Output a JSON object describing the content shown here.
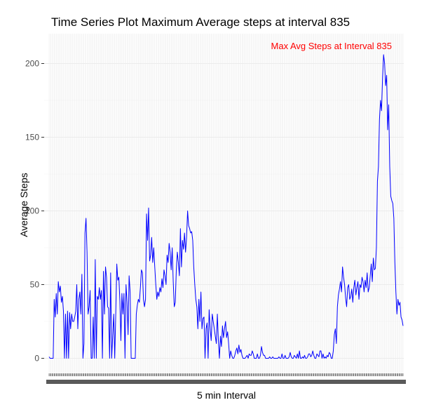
{
  "chart_data": {
    "type": "line",
    "title": "Time Series Plot Maximum Average steps at interval 835",
    "xlabel": "5 min Interval",
    "ylabel": "Average Steps",
    "ylim": [
      -12,
      220
    ],
    "yticks": [
      0,
      50,
      100,
      150,
      200
    ],
    "x_axis_kind": "categorical",
    "x_tick_labels_legible": false,
    "grid": true,
    "series": [
      {
        "color": "#0000ff",
        "values": [
          1,
          0,
          0,
          0,
          0,
          40,
          28,
          44,
          30,
          52,
          45,
          49,
          38,
          42,
          32,
          0,
          30,
          0,
          32,
          0,
          31,
          20,
          30,
          25,
          25,
          28,
          32,
          50,
          20,
          40,
          45,
          30,
          57,
          0,
          10,
          85,
          95,
          72,
          30,
          35,
          46,
          0,
          0,
          28,
          0,
          67,
          0,
          42,
          40,
          48,
          40,
          46,
          0,
          59,
          30,
          62,
          55,
          35,
          34,
          0,
          58,
          0,
          15,
          30,
          0,
          31,
          64,
          53,
          55,
          39,
          12,
          44,
          30,
          44,
          0,
          50,
          38,
          16,
          56,
          45,
          0,
          0,
          0,
          0,
          0,
          30,
          36,
          40,
          38,
          48,
          60,
          58,
          40,
          35,
          40,
          98,
          80,
          102,
          66,
          70,
          82,
          65,
          75,
          62,
          50,
          40,
          45,
          42,
          48,
          45,
          54,
          48,
          60,
          56,
          50,
          70,
          65,
          78,
          72,
          60,
          75,
          52,
          35,
          38,
          60,
          72,
          65,
          56,
          88,
          62,
          80,
          74,
          85,
          72,
          82,
          100,
          90,
          88,
          85,
          86,
          80,
          62,
          50,
          40,
          35,
          20,
          40,
          25,
          45,
          20,
          27,
          28,
          0,
          20,
          24,
          0,
          33,
          20,
          12,
          30,
          25,
          20,
          15,
          10,
          30,
          12,
          0,
          15,
          8,
          22,
          14,
          20,
          25,
          14,
          18,
          10,
          0,
          5,
          2,
          0,
          0,
          2,
          5,
          7,
          3,
          9,
          4,
          6,
          2,
          0,
          0,
          0,
          1,
          2,
          0,
          3,
          2,
          2,
          5,
          3,
          0,
          0,
          0,
          3,
          0,
          0,
          2,
          8,
          4,
          2,
          2,
          0,
          0,
          0,
          0,
          1,
          0,
          0,
          1,
          0,
          0,
          0,
          0,
          0,
          1,
          0,
          0,
          3,
          0,
          0,
          2,
          0,
          0,
          0,
          1,
          4,
          1,
          0,
          0,
          2,
          1,
          0,
          3,
          0,
          5,
          0,
          0,
          1,
          0,
          2,
          0,
          0,
          1,
          3,
          3,
          1,
          2,
          5,
          2,
          0,
          0,
          3,
          2,
          1,
          5,
          5,
          0,
          3,
          0,
          1,
          0,
          2,
          1,
          4,
          3,
          0,
          0,
          5,
          16,
          20,
          10,
          35,
          43,
          47,
          52,
          45,
          62,
          55,
          50,
          41,
          35,
          48,
          50,
          40,
          42,
          47,
          38,
          48,
          53,
          43,
          48,
          52,
          40,
          50,
          48,
          55,
          52,
          45,
          53,
          48,
          58,
          45,
          48,
          56,
          64,
          52,
          68,
          60,
          61,
          75,
          120,
          130,
          162,
          175,
          168,
          190,
          206,
          200,
          185,
          192,
          155,
          172,
          130,
          110,
          107,
          105,
          95,
          65,
          45,
          30,
          40,
          36,
          38,
          28,
          26,
          22
        ]
      }
    ],
    "annotations": [
      {
        "text": "Max Avg Steps at Interval 835",
        "color": "#ff0000",
        "anchor_value": 206
      }
    ]
  }
}
